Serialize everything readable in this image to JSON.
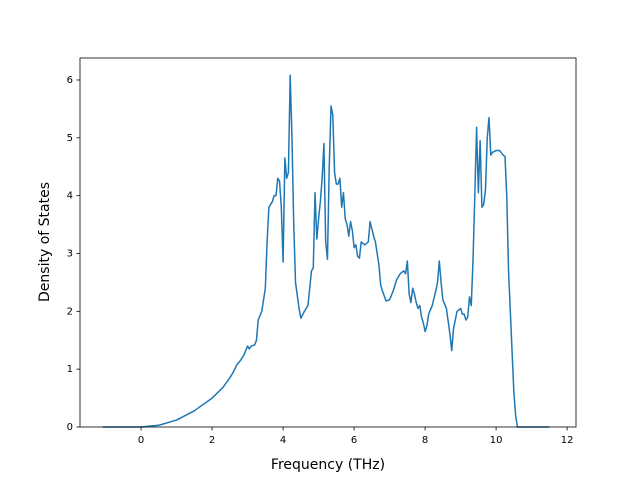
{
  "chart_data": {
    "type": "line",
    "xlabel": "Frequency (THz)",
    "ylabel": "Density of States",
    "color": "#1f77b4",
    "xlim": [
      -1.72,
      12.25
    ],
    "ylim": [
      0,
      6.38
    ],
    "xticks": [
      0,
      2,
      4,
      6,
      8,
      10,
      12
    ],
    "yticks": [
      0,
      1,
      2,
      3,
      4,
      5,
      6
    ],
    "x": [
      -1.08,
      0,
      0.5,
      1.0,
      1.5,
      2.0,
      2.3,
      2.5,
      2.6,
      2.7,
      2.8,
      2.9,
      3.0,
      3.05,
      3.1,
      3.2,
      3.25,
      3.3,
      3.4,
      3.5,
      3.55,
      3.6,
      3.7,
      3.75,
      3.8,
      3.85,
      3.9,
      3.95,
      4.0,
      4.05,
      4.1,
      4.15,
      4.2,
      4.25,
      4.3,
      4.35,
      4.45,
      4.5,
      4.6,
      4.7,
      4.8,
      4.85,
      4.9,
      4.95,
      5.0,
      5.05,
      5.1,
      5.15,
      5.2,
      5.25,
      5.3,
      5.35,
      5.4,
      5.45,
      5.5,
      5.55,
      5.6,
      5.65,
      5.7,
      5.75,
      5.8,
      5.85,
      5.9,
      5.95,
      6.0,
      6.05,
      6.1,
      6.15,
      6.2,
      6.3,
      6.4,
      6.45,
      6.55,
      6.6,
      6.7,
      6.75,
      6.8,
      6.9,
      7.0,
      7.1,
      7.2,
      7.3,
      7.4,
      7.45,
      7.5,
      7.55,
      7.6,
      7.65,
      7.7,
      7.75,
      7.8,
      7.85,
      7.9,
      7.95,
      8.0,
      8.05,
      8.1,
      8.2,
      8.3,
      8.35,
      8.4,
      8.45,
      8.5,
      8.6,
      8.7,
      8.75,
      8.8,
      8.9,
      9.0,
      9.05,
      9.1,
      9.15,
      9.2,
      9.25,
      9.3,
      9.35,
      9.4,
      9.45,
      9.5,
      9.55,
      9.6,
      9.65,
      9.7,
      9.75,
      9.8,
      9.85,
      9.9,
      10.0,
      10.1,
      10.2,
      10.25,
      10.3,
      10.35,
      10.4,
      10.45,
      10.5,
      10.55,
      10.6,
      11.5
    ],
    "values": [
      0,
      0,
      0.03,
      0.12,
      0.28,
      0.5,
      0.68,
      0.85,
      0.95,
      1.08,
      1.15,
      1.25,
      1.4,
      1.35,
      1.4,
      1.42,
      1.5,
      1.85,
      2.0,
      2.4,
      3.2,
      3.8,
      3.9,
      4.0,
      4.0,
      4.3,
      4.25,
      3.8,
      2.85,
      4.65,
      4.3,
      4.4,
      6.08,
      5.0,
      3.5,
      2.5,
      2.05,
      1.88,
      2.0,
      2.1,
      2.7,
      2.75,
      4.05,
      3.25,
      3.6,
      3.9,
      4.3,
      4.9,
      3.2,
      2.9,
      4.5,
      5.55,
      5.4,
      4.4,
      4.2,
      4.2,
      4.3,
      3.8,
      4.05,
      3.6,
      3.5,
      3.3,
      3.55,
      3.4,
      3.1,
      3.15,
      2.95,
      2.92,
      3.2,
      3.15,
      3.2,
      3.55,
      3.3,
      3.2,
      2.8,
      2.45,
      2.35,
      2.18,
      2.2,
      2.35,
      2.55,
      2.65,
      2.7,
      2.65,
      2.87,
      2.3,
      2.15,
      2.4,
      2.3,
      2.15,
      2.05,
      2.1,
      1.9,
      1.8,
      1.65,
      1.75,
      1.95,
      2.1,
      2.35,
      2.5,
      2.87,
      2.5,
      2.2,
      2.05,
      1.6,
      1.32,
      1.7,
      2.0,
      2.05,
      1.95,
      1.95,
      1.85,
      1.9,
      2.25,
      2.1,
      2.9,
      4.0,
      5.18,
      4.05,
      4.95,
      3.8,
      3.85,
      4.1,
      5.0,
      5.35,
      4.7,
      4.75,
      4.78,
      4.78,
      4.7,
      4.68,
      4.0,
      2.7,
      2.0,
      1.3,
      0.6,
      0.2,
      0,
      0
    ]
  }
}
